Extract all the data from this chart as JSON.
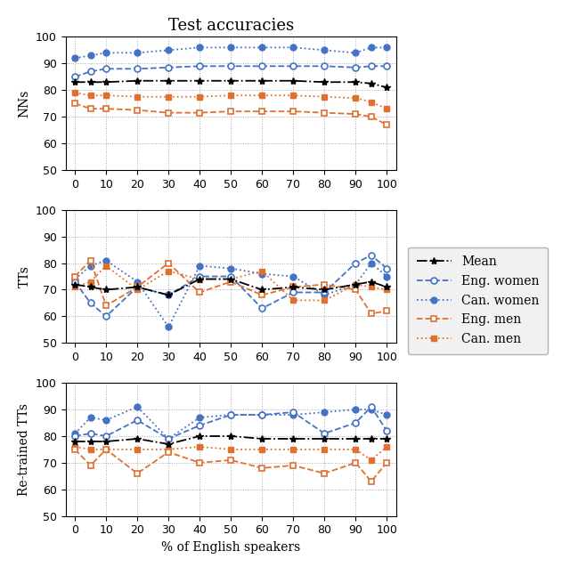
{
  "title": "Test accuracies",
  "xlabel": "% of English speakers",
  "x": [
    0,
    5,
    10,
    20,
    30,
    40,
    50,
    60,
    70,
    80,
    90,
    95,
    100
  ],
  "nn": {
    "mean": [
      83,
      83,
      83,
      83.5,
      83.5,
      83.5,
      83.5,
      83.5,
      83.5,
      83,
      83,
      82.5,
      81
    ],
    "eng_women": [
      85,
      87,
      88,
      88,
      88.5,
      89,
      89,
      89,
      89,
      89,
      88.5,
      89,
      89
    ],
    "can_women": [
      92,
      93,
      94,
      94,
      95,
      96,
      96,
      96,
      96,
      95,
      94,
      96,
      96
    ],
    "eng_men": [
      75,
      73,
      73,
      72.5,
      71.5,
      71.5,
      72,
      72,
      72,
      71.5,
      71,
      70,
      67
    ],
    "can_men": [
      79,
      78,
      78,
      77.5,
      77.5,
      77.5,
      78,
      78,
      78,
      77.5,
      77,
      75.5,
      73
    ]
  },
  "tt": {
    "mean": [
      72,
      71,
      70,
      71,
      68,
      74,
      74,
      70,
      71,
      70,
      72,
      73,
      71
    ],
    "eng_women": [
      73,
      65,
      60,
      71,
      68,
      75,
      75,
      63,
      69,
      69,
      80,
      83,
      78
    ],
    "can_women": [
      74,
      79,
      81,
      73,
      56,
      79,
      78,
      76,
      75,
      68,
      72,
      80,
      75
    ],
    "eng_men": [
      75,
      81,
      64,
      71,
      80,
      69,
      73,
      68,
      71,
      72,
      70,
      61,
      62
    ],
    "can_men": [
      71,
      73,
      79,
      70,
      77,
      74,
      74,
      77,
      66,
      66,
      72,
      71,
      70
    ]
  },
  "retrained_tt": {
    "mean": [
      78,
      78,
      78,
      79,
      77,
      80,
      80,
      79,
      79,
      79,
      79,
      79,
      79
    ],
    "eng_women": [
      80,
      81,
      80,
      86,
      79,
      84,
      88,
      88,
      89,
      81,
      85,
      91,
      82
    ],
    "can_women": [
      81,
      87,
      86,
      91,
      79,
      87,
      88,
      88,
      88,
      89,
      90,
      90,
      88
    ],
    "eng_men": [
      75,
      69,
      75,
      66,
      74,
      70,
      71,
      68,
      69,
      66,
      70,
      63,
      70
    ],
    "can_men": [
      76,
      75,
      75,
      75,
      75,
      76,
      75,
      75,
      75,
      75,
      75,
      71,
      76
    ]
  },
  "ylabel_nn": "NNs",
  "ylabel_tt": "TTs",
  "ylabel_retrained": "Re-trained TTs",
  "legend_labels": [
    "Mean",
    "Eng. women",
    "Can. women",
    "Eng. men",
    "Can. men"
  ],
  "blue": "#4472C4",
  "orange": "#E07030",
  "black": "#000000",
  "ylim": [
    50,
    100
  ],
  "yticks": [
    50,
    60,
    70,
    80,
    90,
    100
  ],
  "xticks": [
    0,
    10,
    20,
    30,
    40,
    50,
    60,
    70,
    80,
    90,
    100
  ]
}
